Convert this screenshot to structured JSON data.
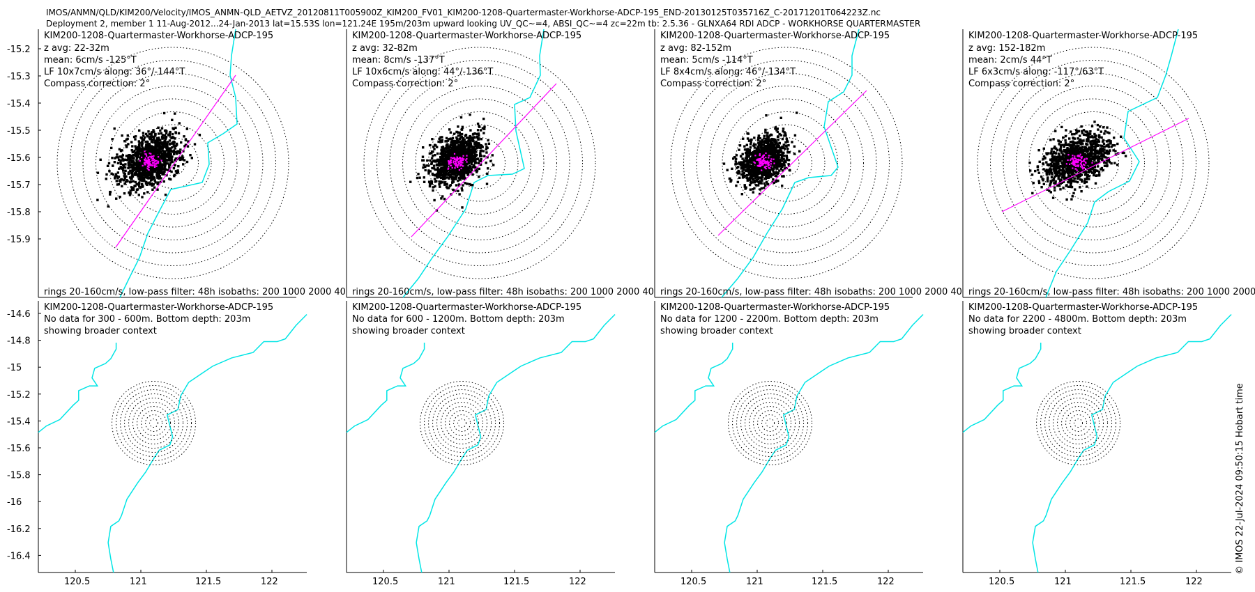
{
  "header": {
    "line1": "IMOS/ANMN/QLD/KIM200/Velocity/IMOS_ANMN-QLD_AETVZ_20120811T005900Z_KIM200_FV01_KIM200-1208-Quartermaster-Workhorse-ADCP-195_END-20130125T035716Z_C-20171201T064223Z.nc",
    "line2": "Deployment 2, member 1 11-Aug-2012...24-Jan-2013 lat=15.53S lon=121.24E 195m/203m upward looking UV_QC~=4, ABSI_QC~=4 zc=22m tb: 2.5.36 - GLNXA64 RDI ADCP - WORKHORSE QUARTERMASTER"
  },
  "credit": "© IMOS 22-Jul-2024 09:50:15 Hobart time",
  "colors": {
    "scatter": "#000000",
    "lowpass": "#ff00ff",
    "isobath": "#00e5e5",
    "rings": "#000000"
  },
  "chart_data": [
    {
      "type": "scatter",
      "panel": "top-1",
      "title": "KIM200-1208-Quartermaster-Workhorse-ADCP-195",
      "lines": [
        "z avg: 22-32m",
        "mean: 6cm/s -125°T",
        "LF 10x7cm/s along: 36°/-144°T",
        "Compass correction: 2°"
      ],
      "footer": "rings 20-160cm/s, low-pass filter: 48h isobaths: 200 1000 2000 40",
      "lf_axis_deg": 36,
      "spread": [
        0.72,
        0.48
      ],
      "center_lat": -15.53,
      "ylim": [
        -15.94,
        -15.15
      ],
      "yticks": [
        "-15.2",
        "-15.3",
        "-15.4",
        "-15.5",
        "-15.6",
        "-15.7",
        "-15.8",
        "-15.9"
      ]
    },
    {
      "type": "scatter",
      "panel": "top-2",
      "title": "KIM200-1208-Quartermaster-Workhorse-ADCP-195",
      "lines": [
        "z avg: 32-82m",
        "mean: 8cm/s -137°T",
        "LF 10x6cm/s along: 44°/-136°T",
        "Compass correction: 2°"
      ],
      "footer": "rings 20-160cm/s, low-pass filter: 48h isobaths: 200 1000 2000 40",
      "lf_axis_deg": 44,
      "spread": [
        0.6,
        0.45
      ]
    },
    {
      "type": "scatter",
      "panel": "top-3",
      "title": "KIM200-1208-Quartermaster-Workhorse-ADCP-195",
      "lines": [
        "z avg: 82-152m",
        "mean: 5cm/s -114°T",
        "LF 8x4cm/s along: 46°/-134°T",
        "Compass correction: 2°"
      ],
      "footer": "rings 20-160cm/s, low-pass filter: 48h isobaths: 200 1000 2000 40",
      "lf_axis_deg": 46,
      "spread": [
        0.55,
        0.4
      ]
    },
    {
      "type": "scatter",
      "panel": "top-4",
      "title": "KIM200-1208-Quartermaster-Workhorse-ADCP-195",
      "lines": [
        "z avg: 152-182m",
        "mean: 2cm/s 44°T",
        "LF 6x3cm/s along: -117°/63°T",
        "Compass correction: 2°"
      ],
      "footer": "rings 20-160cm/s, low-pass filter: 48h isobaths: 200 1000 2000 40",
      "lf_axis_deg": 63,
      "spread": [
        0.75,
        0.45
      ]
    },
    {
      "type": "line",
      "panel": "bottom-1",
      "title": "KIM200-1208-Quartermaster-Workhorse-ADCP-195",
      "lines": [
        "No data for 300 - 600m. Bottom depth: 203m",
        "showing broader context"
      ],
      "xlim": [
        120.2,
        122.25
      ],
      "ylim": [
        -16.52,
        -14.58
      ],
      "xticks": [
        "120.5",
        "121",
        "121.5",
        "122"
      ],
      "yticks": [
        "-14.6",
        "-14.8",
        "-15",
        "-15.2",
        "-15.4",
        "-15.6",
        "-15.8",
        "-16",
        "-16.2",
        "-16.4"
      ]
    },
    {
      "type": "line",
      "panel": "bottom-2",
      "title": "KIM200-1208-Quartermaster-Workhorse-ADCP-195",
      "lines": [
        "No data for 600 - 1200m. Bottom depth: 203m",
        "showing broader context"
      ],
      "xticks": [
        "120.5",
        "121",
        "121.5",
        "122"
      ]
    },
    {
      "type": "line",
      "panel": "bottom-3",
      "title": "KIM200-1208-Quartermaster-Workhorse-ADCP-195",
      "lines": [
        "No data for 1200 - 2200m. Bottom depth: 203m",
        "showing broader context"
      ],
      "xticks": [
        "120.5",
        "121",
        "121.5",
        "122"
      ]
    },
    {
      "type": "line",
      "panel": "bottom-4",
      "title": "KIM200-1208-Quartermaster-Workhorse-ADCP-195",
      "lines": [
        "No data for 2200 - 4800m. Bottom depth: 203m",
        "showing broader context"
      ],
      "xticks": [
        "120.5",
        "121",
        "121.5",
        "122"
      ]
    }
  ]
}
